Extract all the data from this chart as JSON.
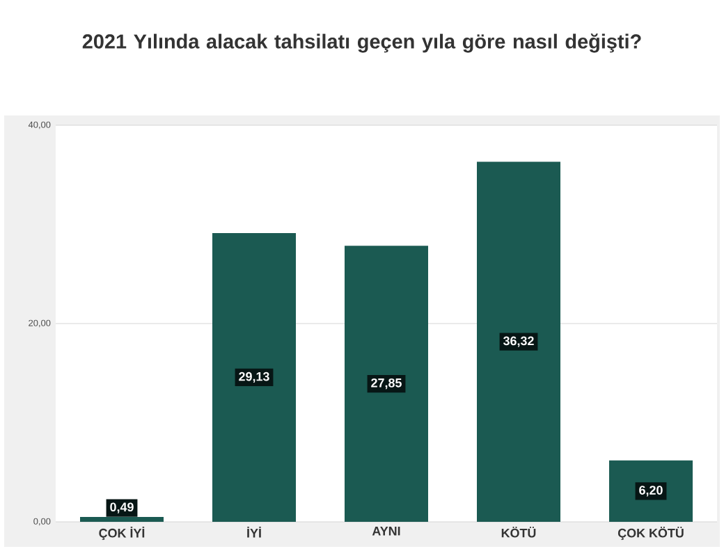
{
  "chart_data": {
    "type": "bar",
    "title": "2021 Yılında alacak tahsilatı geçen yıla göre nasıl değişti?",
    "categories": [
      "ÇOK İYİ",
      "İYİ",
      "AYNI",
      "KÖTÜ",
      "ÇOK KÖTÜ"
    ],
    "values": [
      0.49,
      29.13,
      27.85,
      36.32,
      6.2
    ],
    "value_labels": [
      "0,49",
      "29,13",
      "27,85",
      "36,32",
      "6,20"
    ],
    "color": "#1b5a52",
    "ylim": [
      0,
      40
    ],
    "yticks": [
      {
        "value": 0,
        "label": "0,00"
      },
      {
        "value": 20,
        "label": "20,00"
      },
      {
        "value": 40,
        "label": "40,00"
      }
    ],
    "grid": "y"
  }
}
